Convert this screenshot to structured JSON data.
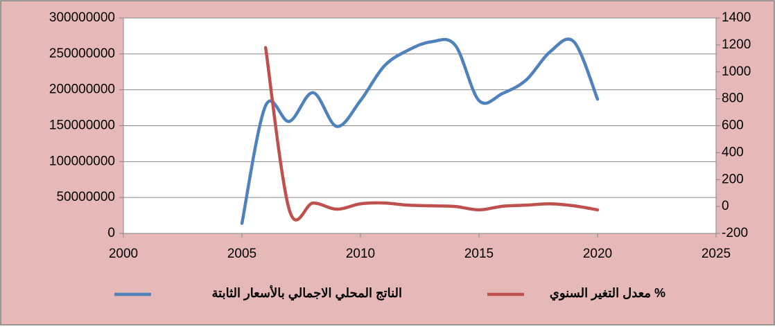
{
  "chart_data": {
    "type": "line",
    "x": [
      2005,
      2006,
      2007,
      2008,
      2009,
      2010,
      2011,
      2012,
      2013,
      2014,
      2015,
      2016,
      2017,
      2018,
      2019,
      2020
    ],
    "series": [
      {
        "name": "الناتج المحلي الاجمالي بالأسعار الثابتة",
        "color": "#4f81bd",
        "values": [
          14000000,
          178000000,
          156000000,
          196000000,
          149000000,
          185000000,
          233000000,
          255000000,
          267000000,
          262000000,
          185000000,
          195000000,
          214000000,
          253000000,
          267000000,
          187000000
        ]
      },
      {
        "name": "معدل التغير السنوي %",
        "color": "#c0504d",
        "axis": "y2",
        "values": [
          null,
          1180,
          -26,
          26,
          -20,
          20,
          26,
          10,
          5,
          0,
          -25,
          2,
          10,
          20,
          5,
          -25
        ]
      }
    ],
    "xlim": [
      2000,
      2025
    ],
    "xticks": [
      2000,
      2005,
      2010,
      2015,
      2020,
      2025
    ],
    "ylim": [
      0,
      300000000
    ],
    "yticks": [
      0,
      50000000,
      100000000,
      150000000,
      200000000,
      250000000,
      300000000
    ],
    "y2lim": [
      -200,
      1400
    ],
    "y2ticks": [
      -200,
      0,
      200,
      400,
      600,
      800,
      1000,
      1200,
      1400
    ],
    "grid": true,
    "legend": "bottom"
  }
}
